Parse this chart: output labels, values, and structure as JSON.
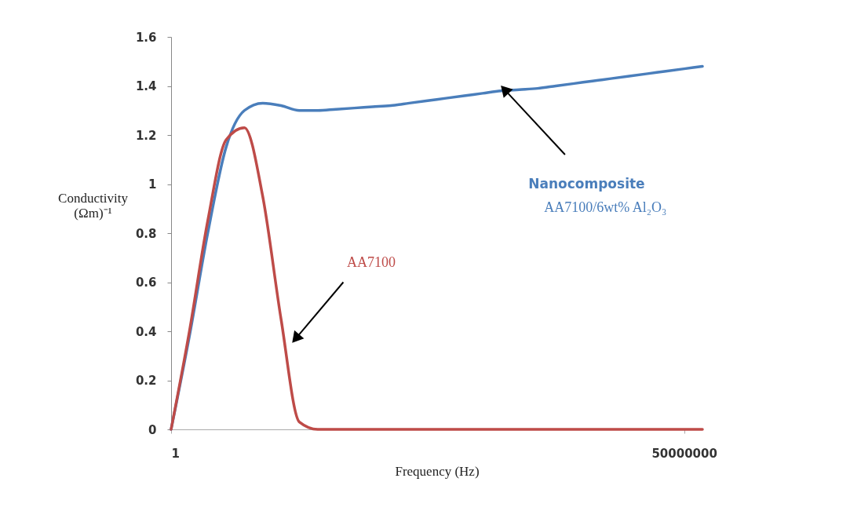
{
  "chart_data": {
    "type": "line",
    "xlabel": "Frequency (Hz)",
    "ylabel": "Conductivity\n(Ωm)⁻¹",
    "categories": [
      "1",
      null,
      null,
      null,
      null,
      null,
      null,
      null,
      null,
      null,
      null,
      null,
      null,
      null,
      null,
      null,
      null,
      null,
      null,
      null,
      null,
      null,
      null,
      null,
      null,
      null,
      null,
      null,
      "50000000",
      null
    ],
    "ylim": [
      0,
      1.6
    ],
    "yticks": [
      0,
      0.2,
      0.4,
      0.6,
      0.8,
      1,
      1.2,
      1.4,
      1.6
    ],
    "grid": false,
    "legend": false,
    "series": [
      {
        "name": "Nanocomposite\nAA7100/6wt% Al₂O₃",
        "color": "#4a7ebb",
        "values": [
          0,
          0.38,
          0.8,
          1.15,
          1.3,
          1.33,
          1.32,
          1.3,
          1.3,
          1.305,
          1.31,
          1.315,
          1.32,
          1.33,
          1.34,
          1.35,
          1.36,
          1.37,
          1.38,
          1.385,
          1.39,
          1.4,
          1.41,
          1.42,
          1.43,
          1.44,
          1.45,
          1.46,
          1.47,
          1.48
        ]
      },
      {
        "name": "AA7100",
        "color": "#be4b48",
        "values": [
          0,
          0.4,
          0.85,
          1.18,
          1.23,
          0.95,
          0.45,
          0.03,
          0,
          0,
          0,
          0,
          0,
          0,
          0,
          0,
          0,
          0,
          0,
          0,
          0,
          0,
          0,
          0,
          0,
          0,
          0,
          0,
          0,
          0
        ]
      }
    ]
  }
}
